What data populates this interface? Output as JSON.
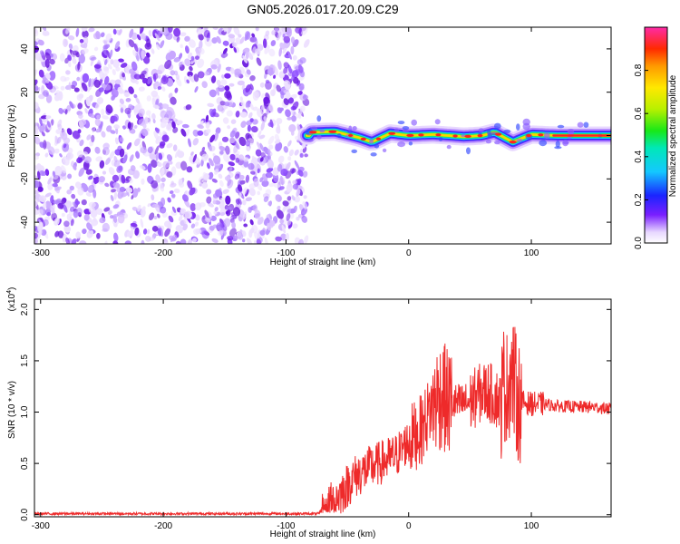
{
  "page": {
    "title": "GN05.2026.017.20.09.C29"
  },
  "chart_data": [
    {
      "type": "heatmap",
      "xlabel": "Height of straight line (km)",
      "ylabel": "Frequency (Hz)",
      "xlim": [
        -305,
        165
      ],
      "ylim": [
        -50,
        50
      ],
      "x_ticks": [
        -300,
        -200,
        -100,
        0,
        100
      ],
      "x_tick_labels": [
        "-300",
        "-200",
        "-100",
        "0",
        "100"
      ],
      "y_ticks": [
        -40,
        -20,
        0,
        20,
        40
      ],
      "y_tick_labels": [
        "-40",
        "-20",
        "0",
        "20",
        "40"
      ],
      "colorbar": {
        "label": "Normalized spectral amplitude",
        "range": [
          0,
          1
        ],
        "ticks": [
          0.0,
          0.2,
          0.4,
          0.6,
          0.8
        ],
        "tick_labels": [
          "0.0",
          "0.2",
          "0.4",
          "0.6",
          "0.8"
        ],
        "colormap": "rainbow"
      },
      "noise_region_x": [
        -305,
        -83
      ],
      "signal_region_x": [
        -83,
        165
      ],
      "signal_center_frequency": 0,
      "signal_ridge": [
        {
          "x": -80,
          "y": 1.5
        },
        {
          "x": -60,
          "y": 1.8
        },
        {
          "x": -40,
          "y": -1
        },
        {
          "x": -30,
          "y": -3
        },
        {
          "x": -15,
          "y": 1
        },
        {
          "x": 0,
          "y": 0
        },
        {
          "x": 20,
          "y": 0.5
        },
        {
          "x": 45,
          "y": -0.5
        },
        {
          "x": 60,
          "y": 0
        },
        {
          "x": 70,
          "y": 1.5
        },
        {
          "x": 85,
          "y": -3
        },
        {
          "x": 100,
          "y": 0.5
        },
        {
          "x": 120,
          "y": 0
        },
        {
          "x": 165,
          "y": 0
        }
      ]
    },
    {
      "type": "line",
      "xlabel": "Height of straight line (km)",
      "ylabel": "SNR (10 * v/v)",
      "y_multiplier_label": "(x10",
      "y_multiplier_exponent": "4",
      "y_multiplier_close": ")",
      "xlim": [
        -305,
        165
      ],
      "ylim": [
        -0.02,
        2.1
      ],
      "x_ticks": [
        -300,
        -200,
        -100,
        0,
        100
      ],
      "x_tick_labels": [
        "-300",
        "-200",
        "-100",
        "0",
        "100"
      ],
      "y_ticks": [
        0.0,
        0.5,
        1.0,
        1.5,
        2.0
      ],
      "y_tick_labels": [
        "0.0",
        "0.5",
        "1.0",
        "1.5",
        "2.0"
      ],
      "line_color": "#ee2a2a",
      "series": [
        {
          "x": [
            -305,
            -200,
            -100,
            -70,
            -60,
            -50,
            -45,
            -40,
            -30,
            -20,
            -10,
            0,
            10,
            15,
            20,
            25,
            28,
            30,
            33,
            40,
            50,
            55,
            60,
            65,
            70,
            75,
            78,
            80,
            83,
            85,
            88,
            90,
            100,
            110,
            120,
            140,
            150,
            165
          ],
          "y": [
            0.01,
            0.01,
            0.01,
            0.01,
            0.15,
            0.28,
            0.36,
            0.4,
            0.47,
            0.52,
            0.58,
            0.72,
            0.82,
            0.95,
            1.1,
            1.15,
            1.2,
            1.1,
            1.1,
            1.08,
            1.1,
            1.15,
            1.2,
            1.2,
            1.15,
            1.1,
            1.3,
            1.2,
            1.4,
            1.35,
            1.15,
            1.1,
            1.08,
            1.08,
            1.06,
            1.05,
            1.05,
            1.03
          ]
        }
      ]
    }
  ]
}
